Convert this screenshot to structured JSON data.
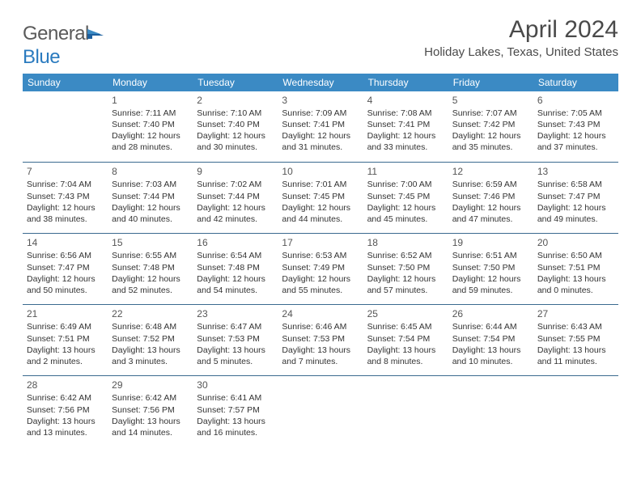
{
  "logo": {
    "word1": "General",
    "word2": "Blue"
  },
  "title": "April 2024",
  "location": "Holiday Lakes, Texas, United States",
  "colors": {
    "header_bg": "#3b8ac4",
    "header_text": "#ffffff",
    "cell_border": "#3b6a8f",
    "body_text": "#333333",
    "title_text": "#4a4a4a",
    "logo_gray": "#5a5a5a",
    "logo_blue": "#2b7bbf",
    "background": "#ffffff"
  },
  "weekdays": [
    "Sunday",
    "Monday",
    "Tuesday",
    "Wednesday",
    "Thursday",
    "Friday",
    "Saturday"
  ],
  "weeks": [
    [
      null,
      {
        "n": "1",
        "sr": "Sunrise: 7:11 AM",
        "ss": "Sunset: 7:40 PM",
        "d1": "Daylight: 12 hours",
        "d2": "and 28 minutes."
      },
      {
        "n": "2",
        "sr": "Sunrise: 7:10 AM",
        "ss": "Sunset: 7:40 PM",
        "d1": "Daylight: 12 hours",
        "d2": "and 30 minutes."
      },
      {
        "n": "3",
        "sr": "Sunrise: 7:09 AM",
        "ss": "Sunset: 7:41 PM",
        "d1": "Daylight: 12 hours",
        "d2": "and 31 minutes."
      },
      {
        "n": "4",
        "sr": "Sunrise: 7:08 AM",
        "ss": "Sunset: 7:41 PM",
        "d1": "Daylight: 12 hours",
        "d2": "and 33 minutes."
      },
      {
        "n": "5",
        "sr": "Sunrise: 7:07 AM",
        "ss": "Sunset: 7:42 PM",
        "d1": "Daylight: 12 hours",
        "d2": "and 35 minutes."
      },
      {
        "n": "6",
        "sr": "Sunrise: 7:05 AM",
        "ss": "Sunset: 7:43 PM",
        "d1": "Daylight: 12 hours",
        "d2": "and 37 minutes."
      }
    ],
    [
      {
        "n": "7",
        "sr": "Sunrise: 7:04 AM",
        "ss": "Sunset: 7:43 PM",
        "d1": "Daylight: 12 hours",
        "d2": "and 38 minutes."
      },
      {
        "n": "8",
        "sr": "Sunrise: 7:03 AM",
        "ss": "Sunset: 7:44 PM",
        "d1": "Daylight: 12 hours",
        "d2": "and 40 minutes."
      },
      {
        "n": "9",
        "sr": "Sunrise: 7:02 AM",
        "ss": "Sunset: 7:44 PM",
        "d1": "Daylight: 12 hours",
        "d2": "and 42 minutes."
      },
      {
        "n": "10",
        "sr": "Sunrise: 7:01 AM",
        "ss": "Sunset: 7:45 PM",
        "d1": "Daylight: 12 hours",
        "d2": "and 44 minutes."
      },
      {
        "n": "11",
        "sr": "Sunrise: 7:00 AM",
        "ss": "Sunset: 7:45 PM",
        "d1": "Daylight: 12 hours",
        "d2": "and 45 minutes."
      },
      {
        "n": "12",
        "sr": "Sunrise: 6:59 AM",
        "ss": "Sunset: 7:46 PM",
        "d1": "Daylight: 12 hours",
        "d2": "and 47 minutes."
      },
      {
        "n": "13",
        "sr": "Sunrise: 6:58 AM",
        "ss": "Sunset: 7:47 PM",
        "d1": "Daylight: 12 hours",
        "d2": "and 49 minutes."
      }
    ],
    [
      {
        "n": "14",
        "sr": "Sunrise: 6:56 AM",
        "ss": "Sunset: 7:47 PM",
        "d1": "Daylight: 12 hours",
        "d2": "and 50 minutes."
      },
      {
        "n": "15",
        "sr": "Sunrise: 6:55 AM",
        "ss": "Sunset: 7:48 PM",
        "d1": "Daylight: 12 hours",
        "d2": "and 52 minutes."
      },
      {
        "n": "16",
        "sr": "Sunrise: 6:54 AM",
        "ss": "Sunset: 7:48 PM",
        "d1": "Daylight: 12 hours",
        "d2": "and 54 minutes."
      },
      {
        "n": "17",
        "sr": "Sunrise: 6:53 AM",
        "ss": "Sunset: 7:49 PM",
        "d1": "Daylight: 12 hours",
        "d2": "and 55 minutes."
      },
      {
        "n": "18",
        "sr": "Sunrise: 6:52 AM",
        "ss": "Sunset: 7:50 PM",
        "d1": "Daylight: 12 hours",
        "d2": "and 57 minutes."
      },
      {
        "n": "19",
        "sr": "Sunrise: 6:51 AM",
        "ss": "Sunset: 7:50 PM",
        "d1": "Daylight: 12 hours",
        "d2": "and 59 minutes."
      },
      {
        "n": "20",
        "sr": "Sunrise: 6:50 AM",
        "ss": "Sunset: 7:51 PM",
        "d1": "Daylight: 13 hours",
        "d2": "and 0 minutes."
      }
    ],
    [
      {
        "n": "21",
        "sr": "Sunrise: 6:49 AM",
        "ss": "Sunset: 7:51 PM",
        "d1": "Daylight: 13 hours",
        "d2": "and 2 minutes."
      },
      {
        "n": "22",
        "sr": "Sunrise: 6:48 AM",
        "ss": "Sunset: 7:52 PM",
        "d1": "Daylight: 13 hours",
        "d2": "and 3 minutes."
      },
      {
        "n": "23",
        "sr": "Sunrise: 6:47 AM",
        "ss": "Sunset: 7:53 PM",
        "d1": "Daylight: 13 hours",
        "d2": "and 5 minutes."
      },
      {
        "n": "24",
        "sr": "Sunrise: 6:46 AM",
        "ss": "Sunset: 7:53 PM",
        "d1": "Daylight: 13 hours",
        "d2": "and 7 minutes."
      },
      {
        "n": "25",
        "sr": "Sunrise: 6:45 AM",
        "ss": "Sunset: 7:54 PM",
        "d1": "Daylight: 13 hours",
        "d2": "and 8 minutes."
      },
      {
        "n": "26",
        "sr": "Sunrise: 6:44 AM",
        "ss": "Sunset: 7:54 PM",
        "d1": "Daylight: 13 hours",
        "d2": "and 10 minutes."
      },
      {
        "n": "27",
        "sr": "Sunrise: 6:43 AM",
        "ss": "Sunset: 7:55 PM",
        "d1": "Daylight: 13 hours",
        "d2": "and 11 minutes."
      }
    ],
    [
      {
        "n": "28",
        "sr": "Sunrise: 6:42 AM",
        "ss": "Sunset: 7:56 PM",
        "d1": "Daylight: 13 hours",
        "d2": "and 13 minutes."
      },
      {
        "n": "29",
        "sr": "Sunrise: 6:42 AM",
        "ss": "Sunset: 7:56 PM",
        "d1": "Daylight: 13 hours",
        "d2": "and 14 minutes."
      },
      {
        "n": "30",
        "sr": "Sunrise: 6:41 AM",
        "ss": "Sunset: 7:57 PM",
        "d1": "Daylight: 13 hours",
        "d2": "and 16 minutes."
      },
      null,
      null,
      null,
      null
    ]
  ]
}
